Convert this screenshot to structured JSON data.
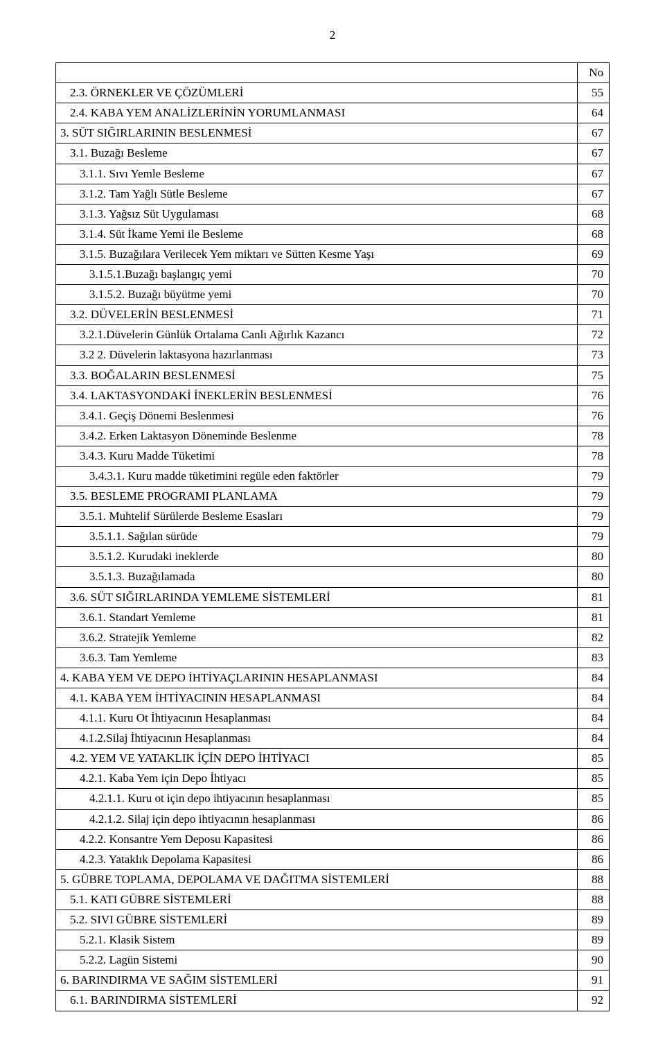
{
  "page_number": "2",
  "header_no": "No",
  "rows": [
    {
      "indent": 1,
      "label": "2.3. ÖRNEKLER VE ÇÖZÜMLERİ",
      "page": "55"
    },
    {
      "indent": 1,
      "label": "2.4. KABA YEM ANALİZLERİNİN YORUMLANMASI",
      "page": "64"
    },
    {
      "indent": 0,
      "label": "3. SÜT SIĞIRLARININ BESLENMESİ",
      "page": "67"
    },
    {
      "indent": 1,
      "label": "3.1. Buzağı Besleme",
      "page": "67"
    },
    {
      "indent": 2,
      "label": "3.1.1. Sıvı Yemle Besleme",
      "page": "67"
    },
    {
      "indent": 2,
      "label": "3.1.2. Tam Yağlı Sütle Besleme",
      "page": "67"
    },
    {
      "indent": 2,
      "label": "3.1.3. Yağsız Süt Uygulaması",
      "page": "68"
    },
    {
      "indent": 2,
      "label": "3.1.4. Süt İkame Yemi ile Besleme",
      "page": "68"
    },
    {
      "indent": 2,
      "label": "3.1.5. Buzağılara Verilecek Yem miktarı ve Sütten Kesme Yaşı",
      "page": "69"
    },
    {
      "indent": 3,
      "label": "3.1.5.1.Buzağı başlangıç yemi",
      "page": "70"
    },
    {
      "indent": 3,
      "label": "3.1.5.2. Buzağı büyütme yemi",
      "page": "70"
    },
    {
      "indent": 1,
      "label": "3.2. DÜVELERİN BESLENMESİ",
      "page": "71"
    },
    {
      "indent": 2,
      "label": "3.2.1.Düvelerin Günlük Ortalama Canlı Ağırlık Kazancı",
      "page": "72"
    },
    {
      "indent": 2,
      "label": "3.2 2. Düvelerin laktasyona hazırlanması",
      "page": "73"
    },
    {
      "indent": 1,
      "label": "3.3. BOĞALARIN BESLENMESİ",
      "page": "75"
    },
    {
      "indent": 1,
      "label": "3.4. LAKTASYONDAKİ İNEKLERİN BESLENMESİ",
      "page": "76"
    },
    {
      "indent": 2,
      "label": "3.4.1. Geçiş Dönemi Beslenmesi",
      "page": "76"
    },
    {
      "indent": 2,
      "label": "3.4.2. Erken Laktasyon Döneminde Beslenme",
      "page": "78"
    },
    {
      "indent": 2,
      "label": "3.4.3. Kuru Madde Tüketimi",
      "page": "78"
    },
    {
      "indent": 3,
      "label": "3.4.3.1. Kuru madde tüketimini regüle eden faktörler",
      "page": "79"
    },
    {
      "indent": 1,
      "label": "3.5. BESLEME PROGRAMI PLANLAMA",
      "page": "79"
    },
    {
      "indent": 2,
      "label": "3.5.1. Muhtelif Sürülerde Besleme Esasları",
      "page": "79"
    },
    {
      "indent": 3,
      "label": "3.5.1.1. Sağılan sürüde",
      "page": "79"
    },
    {
      "indent": 3,
      "label": "3.5.1.2. Kurudaki ineklerde",
      "page": "80"
    },
    {
      "indent": 3,
      "label": "3.5.1.3. Buzağılamada",
      "page": "80"
    },
    {
      "indent": 1,
      "label": "3.6. SÜT SIĞIRLARINDA YEMLEME SİSTEMLERİ",
      "page": "81"
    },
    {
      "indent": 2,
      "label": "3.6.1. Standart Yemleme",
      "page": "81"
    },
    {
      "indent": 2,
      "label": "3.6.2. Stratejik Yemleme",
      "page": "82"
    },
    {
      "indent": 2,
      "label": "3.6.3. Tam Yemleme",
      "page": "83"
    },
    {
      "indent": 0,
      "label": "4. KABA YEM VE DEPO İHTİYAÇLARININ HESAPLANMASI",
      "page": "84"
    },
    {
      "indent": 1,
      "label": "4.1. KABA YEM İHTİYACININ HESAPLANMASI",
      "page": "84"
    },
    {
      "indent": 2,
      "label": "4.1.1. Kuru Ot İhtiyacının Hesaplanması",
      "page": "84"
    },
    {
      "indent": 2,
      "label": "4.1.2.Silaj  İhtiyacının Hesaplanması",
      "page": "84"
    },
    {
      "indent": 1,
      "label": "4.2. YEM VE YATAKLIK İÇİN DEPO İHTİYACI",
      "page": "85"
    },
    {
      "indent": 2,
      "label": "4.2.1. Kaba Yem için Depo İhtiyacı",
      "page": "85"
    },
    {
      "indent": 3,
      "label": "4.2.1.1. Kuru ot için depo ihtiyacının hesaplanması",
      "page": "85"
    },
    {
      "indent": 3,
      "label": "4.2.1.2. Silaj için depo ihtiyacının hesaplanması",
      "page": "86"
    },
    {
      "indent": 2,
      "label": "4.2.2. Konsantre Yem Deposu Kapasitesi",
      "page": "86"
    },
    {
      "indent": 2,
      "label": "4.2.3. Yataklık Depolama Kapasitesi",
      "page": "86"
    },
    {
      "indent": 0,
      "label": "5. GÜBRE TOPLAMA, DEPOLAMA VE  DAĞITMA SİSTEMLERİ",
      "page": "88"
    },
    {
      "indent": 1,
      "label": "5.1. KATI GÜBRE SİSTEMLERİ",
      "page": "88"
    },
    {
      "indent": 1,
      "label": "5.2. SIVI GÜBRE SİSTEMLERİ",
      "page": "89"
    },
    {
      "indent": 2,
      "label": "5.2.1. Klasik Sistem",
      "page": "89"
    },
    {
      "indent": 2,
      "label": "5.2.2. Lagün Sistemi",
      "page": "90"
    },
    {
      "indent": 0,
      "label": "6. BARINDIRMA VE SAĞIM SİSTEMLERİ",
      "page": "91"
    },
    {
      "indent": 1,
      "label": "6.1. BARINDIRMA SİSTEMLERİ",
      "page": "92"
    }
  ]
}
